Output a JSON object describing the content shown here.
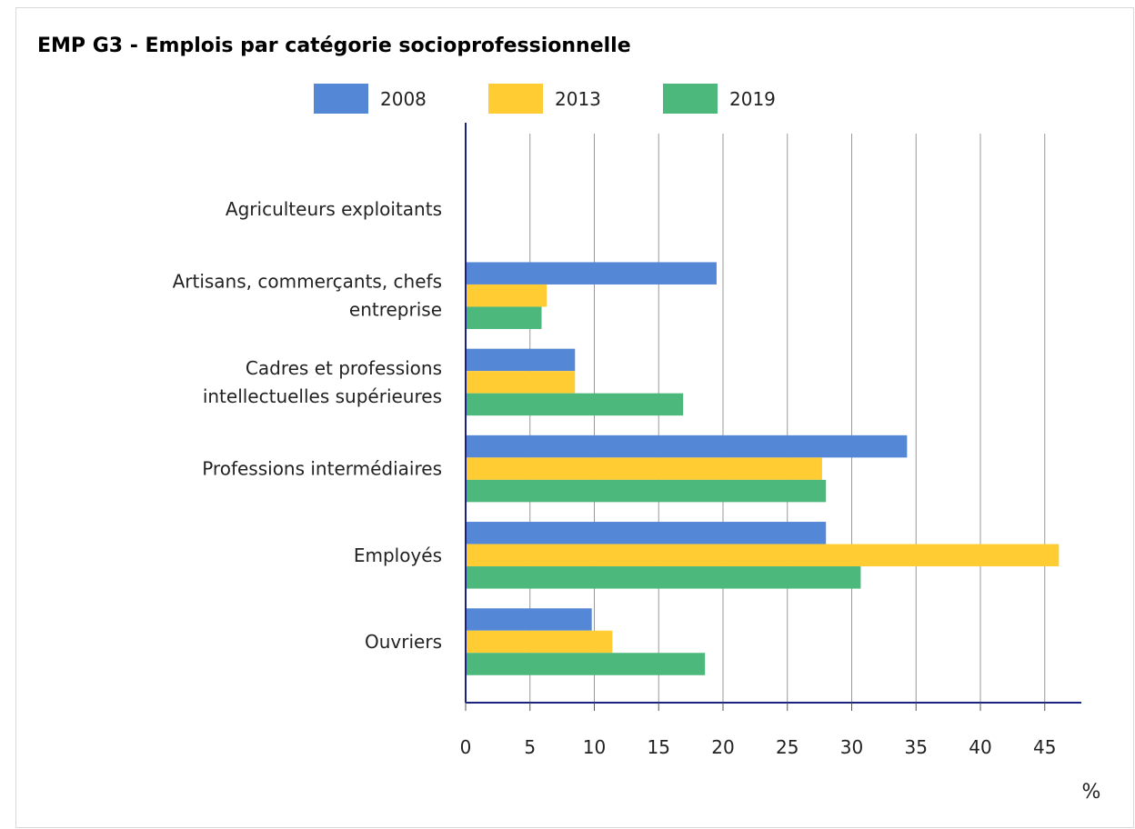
{
  "chart_data": {
    "type": "bar",
    "orientation": "horizontal",
    "title": "EMP G3 - Emplois par catégorie socioprofessionnelle",
    "unit": "%",
    "categories": [
      [
        "Agriculteurs exploitants"
      ],
      [
        "Artisans, commerçants, chefs",
        "entreprise"
      ],
      [
        "Cadres et professions",
        "intellectuelles supérieures"
      ],
      [
        "Professions intermédiaires"
      ],
      [
        "Employés"
      ],
      [
        "Ouvriers"
      ]
    ],
    "series": [
      {
        "name": "2008",
        "color": "#5487d6",
        "values": [
          0,
          19.5,
          8.5,
          34.3,
          28.0,
          9.8
        ]
      },
      {
        "name": "2013",
        "color": "#ffcd33",
        "values": [
          0,
          6.3,
          8.5,
          27.7,
          46.1,
          11.4
        ]
      },
      {
        "name": "2019",
        "color": "#4cb87c",
        "values": [
          0,
          5.9,
          16.9,
          28.0,
          30.7,
          18.6
        ]
      }
    ],
    "xlim": [
      0,
      48
    ],
    "xticks": [
      0,
      5,
      10,
      15,
      20,
      25,
      30,
      35,
      40,
      45
    ],
    "grid": true,
    "legend_position": "top"
  }
}
